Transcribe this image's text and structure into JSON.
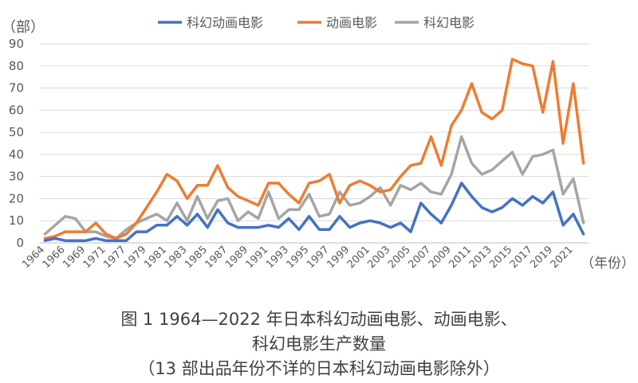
{
  "chart_data": {
    "type": "line",
    "ylabel": "（部）",
    "xlabel": "（年份）",
    "ylim": [
      0,
      90
    ],
    "yticks": [
      0,
      10,
      20,
      30,
      40,
      50,
      60,
      70,
      80,
      90
    ],
    "x_tick_labels": [
      "1964",
      "1966",
      "1969",
      "1971",
      "1977",
      "1979",
      "1981",
      "1983",
      "1985",
      "1987",
      "1989",
      "1991",
      "1993",
      "1995",
      "1997",
      "1999",
      "2001",
      "2003",
      "2005",
      "2007",
      "2009",
      "2011",
      "2013",
      "2015",
      "2017",
      "2019",
      "2021"
    ],
    "grid": true,
    "legend": "top",
    "categories": [
      "1964",
      "1965",
      "1966",
      "1967",
      "1969",
      "1970",
      "1971",
      "1972",
      "1977",
      "1978",
      "1979",
      "1980",
      "1981",
      "1982",
      "1983",
      "1984",
      "1985",
      "1986",
      "1987",
      "1988",
      "1989",
      "1990",
      "1991",
      "1992",
      "1993",
      "1994",
      "1995",
      "1996",
      "1997",
      "1998",
      "1999",
      "2000",
      "2001",
      "2002",
      "2003",
      "2004",
      "2005",
      "2006",
      "2007",
      "2008",
      "2009",
      "2010",
      "2011",
      "2012",
      "2013",
      "2014",
      "2015",
      "2016",
      "2017",
      "2018",
      "2019",
      "2020",
      "2021",
      "2022"
    ],
    "series": [
      {
        "name": "科幻动画电影",
        "color": "#4472C4",
        "values": [
          1,
          2,
          1,
          1,
          1,
          2,
          1,
          1,
          1,
          5,
          5,
          8,
          8,
          12,
          8,
          13,
          7,
          15,
          9,
          7,
          7,
          7,
          8,
          7,
          11,
          6,
          12,
          6,
          6,
          12,
          7,
          9,
          10,
          9,
          7,
          9,
          5,
          18,
          13,
          9,
          17,
          27,
          21,
          16,
          14,
          16,
          20,
          17,
          21,
          18,
          23,
          8,
          13,
          4
        ]
      },
      {
        "name": "动画电影",
        "color": "#ED7D31",
        "values": [
          2,
          3,
          5,
          5,
          5,
          9,
          4,
          2,
          4,
          9,
          16,
          23,
          31,
          28,
          20,
          26,
          26,
          35,
          25,
          21,
          19,
          17,
          27,
          27,
          22,
          18,
          27,
          28,
          31,
          18,
          26,
          28,
          26,
          23,
          24,
          30,
          35,
          36,
          48,
          35,
          53,
          60,
          72,
          59,
          56,
          60,
          83,
          81,
          80,
          59,
          82,
          45,
          72,
          36
        ]
      },
      {
        "name": "科幻电影",
        "color": "#A5A5A5",
        "values": [
          4,
          8,
          12,
          11,
          5,
          5,
          3,
          2,
          6,
          9,
          11,
          13,
          10,
          18,
          10,
          21,
          11,
          19,
          20,
          10,
          14,
          11,
          23,
          11,
          15,
          15,
          22,
          12,
          13,
          23,
          17,
          18,
          21,
          25,
          17,
          26,
          24,
          27,
          23,
          22,
          31,
          48,
          36,
          31,
          33,
          37,
          41,
          31,
          39,
          40,
          42,
          22,
          29,
          9
        ]
      }
    ]
  },
  "caption": {
    "line1": "图 1  1964—2022 年日本科幻动画电影、动画电影、",
    "line2": "科幻电影生产数量",
    "line3": "（13 部出品年份不详的日本科幻动画电影除外）"
  }
}
